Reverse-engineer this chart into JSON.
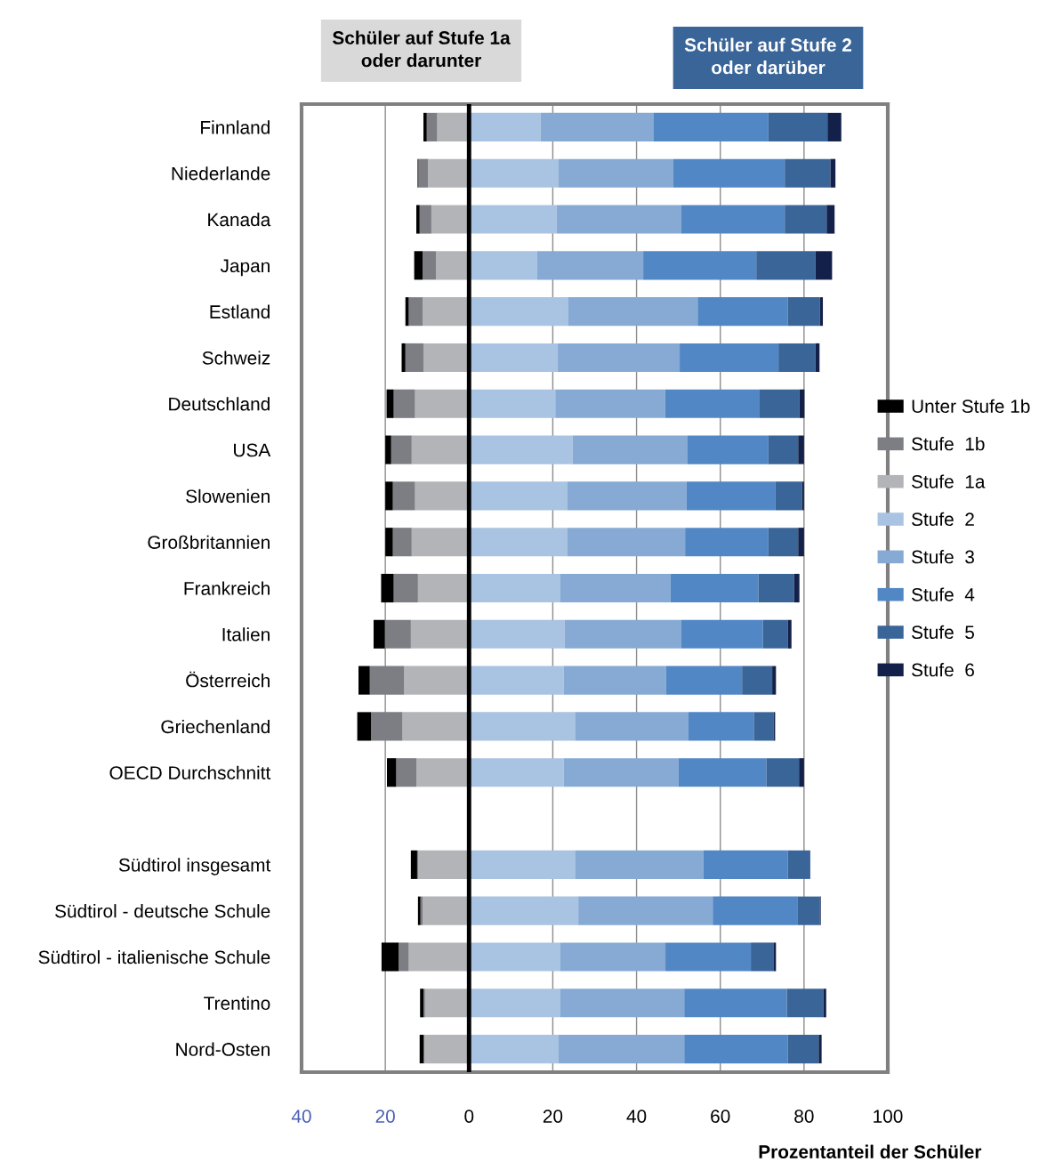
{
  "chart_data": {
    "type": "bar",
    "orientation": "horizontal",
    "stacked": true,
    "categories": [
      "Finnland",
      "Niederlande",
      "Kanada",
      "Japan",
      "Estland",
      "Schweiz",
      "Deutschland",
      "USA",
      "Slowenien",
      "Großbritannien",
      "Frankreich",
      "Italien",
      "Österreich",
      "Griechenland",
      "OECD Durchschnitt",
      null,
      "Südtirol insgesamt",
      "Südtirol - deutsche Schule",
      "Südtirol - italienische Schule",
      "Trentino",
      "Nord-Osten"
    ],
    "series": [
      {
        "name": "Stufe  1a",
        "color": "#b2b4b7",
        "values": [
          -7.6,
          -9.8,
          -9.0,
          -7.9,
          -11.1,
          -10.9,
          -12.9,
          -13.7,
          -12.9,
          -13.7,
          -12.2,
          -13.9,
          -15.5,
          -15.9,
          -12.6,
          null,
          -12.1,
          -11.1,
          -14.4,
          -10.5,
          -10.8
        ]
      },
      {
        "name": "Stufe  1b",
        "color": "#7d7e84",
        "values": [
          -2.5,
          -2.3,
          -2.8,
          -3.2,
          -3.3,
          -4.3,
          -5.1,
          -4.9,
          -5.3,
          -4.5,
          -5.8,
          -6.2,
          -8.2,
          -7.5,
          -4.8,
          null,
          -0.3,
          -0.5,
          -2.4,
          -0.4,
          null
        ]
      },
      {
        "name": "Unter Stufe 1b",
        "color": "#000000",
        "values": [
          -0.8,
          -0.2,
          -0.8,
          -2.0,
          -0.8,
          -0.9,
          -1.7,
          -1.4,
          -1.8,
          -1.8,
          -3.0,
          -2.7,
          -2.7,
          -3.3,
          -2.2,
          null,
          -1.5,
          -0.6,
          -4.1,
          -0.8,
          -1.0
        ]
      },
      {
        "name": "Stufe  2",
        "color": "#a9c3e2",
        "values": [
          17.1,
          21.4,
          20.9,
          16.3,
          23.6,
          21.2,
          20.6,
          24.7,
          23.4,
          23.4,
          21.7,
          22.8,
          22.6,
          25.3,
          22.6,
          null,
          25.3,
          26.1,
          21.7,
          21.7,
          21.4
        ]
      },
      {
        "name": "Stufe  3",
        "color": "#86aad4",
        "values": [
          26.9,
          27.3,
          29.7,
          25.3,
          31.0,
          29.1,
          26.2,
          27.5,
          28.5,
          28.2,
          26.4,
          27.8,
          24.4,
          27.1,
          27.4,
          null,
          30.7,
          32.1,
          25.2,
          29.7,
          30.0
        ]
      },
      {
        "name": "Stufe  4",
        "color": "#5287c6",
        "values": [
          27.5,
          26.7,
          24.8,
          27.0,
          21.5,
          23.6,
          22.6,
          19.3,
          21.3,
          19.9,
          21.0,
          19.6,
          18.2,
          15.6,
          21.0,
          null,
          20.1,
          20.2,
          20.4,
          24.5,
          24.7
        ]
      },
      {
        "name": "Stufe  5",
        "color": "#3a6598",
        "values": [
          14.1,
          10.9,
          10.0,
          14.1,
          7.7,
          8.8,
          9.5,
          7.1,
          6.3,
          7.1,
          8.5,
          5.9,
          7.2,
          4.7,
          7.8,
          null,
          5.4,
          5.4,
          5.5,
          8.7,
          7.4
        ]
      },
      {
        "name": "Stufe  6",
        "color": "#13214a",
        "values": [
          3.3,
          1.2,
          1.9,
          4.0,
          0.7,
          1.0,
          1.2,
          1.4,
          0.5,
          1.4,
          1.3,
          0.9,
          0.9,
          0.4,
          1.2,
          null,
          null,
          0.2,
          0.5,
          0.7,
          0.7
        ]
      }
    ],
    "xlim": [
      -40,
      100
    ],
    "xticks": [
      {
        "value": -40,
        "label": "40"
      },
      {
        "value": -20,
        "label": "20"
      },
      0,
      20,
      40,
      60,
      80,
      100
    ],
    "xlabel": "Prozentanteil der Schüler",
    "grid": "x",
    "legend": "right",
    "ref_lines": [
      {
        "axis": "x",
        "value": 0,
        "color": "#000000"
      }
    ],
    "annotations": [
      "Schüler auf Stufe 1a oder darunter",
      "Schüler auf Stufe 2 oder darüber"
    ]
  }
}
